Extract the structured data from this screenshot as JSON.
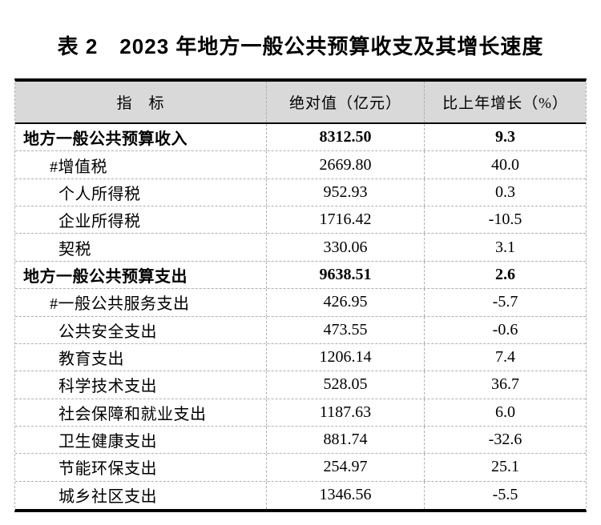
{
  "page_title": "表 2　2023 年地方一般公共预算收支及其增长速度",
  "table": {
    "columns": [
      {
        "label": "指　标"
      },
      {
        "label": "绝对值（亿元）"
      },
      {
        "label": "比上年增长（%）"
      }
    ],
    "rows": [
      {
        "indicator": "地方一般公共预算收入",
        "value": "8312.50",
        "growth": "9.3",
        "bold": true,
        "indent": 0
      },
      {
        "indicator": "#增值税",
        "value": "2669.80",
        "growth": "40.0",
        "bold": false,
        "indent": 1
      },
      {
        "indicator": "个人所得税",
        "value": "952.93",
        "growth": "0.3",
        "bold": false,
        "indent": 2
      },
      {
        "indicator": "企业所得税",
        "value": "1716.42",
        "growth": "-10.5",
        "bold": false,
        "indent": 2
      },
      {
        "indicator": "契税",
        "value": "330.06",
        "growth": "3.1",
        "bold": false,
        "indent": 2
      },
      {
        "indicator": "地方一般公共预算支出",
        "value": "9638.51",
        "growth": "2.6",
        "bold": true,
        "indent": 0
      },
      {
        "indicator": "#一般公共服务支出",
        "value": "426.95",
        "growth": "-5.7",
        "bold": false,
        "indent": 1
      },
      {
        "indicator": "公共安全支出",
        "value": "473.55",
        "growth": "-0.6",
        "bold": false,
        "indent": 2
      },
      {
        "indicator": "教育支出",
        "value": "1206.14",
        "growth": "7.4",
        "bold": false,
        "indent": 2
      },
      {
        "indicator": "科学技术支出",
        "value": "528.05",
        "growth": "36.7",
        "bold": false,
        "indent": 2
      },
      {
        "indicator": "社会保障和就业支出",
        "value": "1187.63",
        "growth": "6.0",
        "bold": false,
        "indent": 2
      },
      {
        "indicator": "卫生健康支出",
        "value": "881.74",
        "growth": "-32.6",
        "bold": false,
        "indent": 2
      },
      {
        "indicator": "节能环保支出",
        "value": "254.97",
        "growth": "25.1",
        "bold": false,
        "indent": 2
      },
      {
        "indicator": "城乡社区支出",
        "value": "1346.56",
        "growth": "-5.5",
        "bold": false,
        "indent": 2
      }
    ]
  },
  "colors": {
    "header_bg": "#d9d9d9",
    "strong_border": "#000000",
    "dashed_border": "#b0b0b0"
  }
}
